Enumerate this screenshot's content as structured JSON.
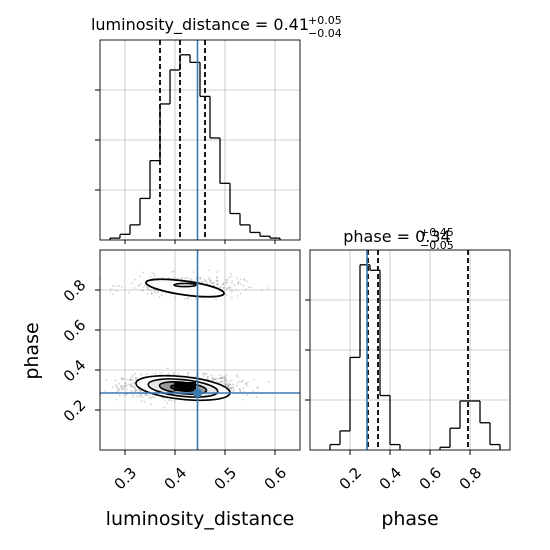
{
  "chart_data": {
    "type": "corner",
    "parameters": [
      {
        "label": "luminosity_distance",
        "title_prefix": "luminosity_distance = ",
        "title_value": "0.41",
        "title_plus": "+0.05",
        "title_minus": "−0.04",
        "range": [
          0.25,
          0.65
        ],
        "ticks": [
          0.3,
          0.4,
          0.5,
          0.6
        ],
        "tick_labels": [
          "0.3",
          "0.4",
          "0.5",
          "0.6"
        ],
        "truth": 0.445,
        "quantiles": [
          0.37,
          0.41,
          0.46
        ],
        "histogram": {
          "bin_edges": [
            0.25,
            0.27,
            0.29,
            0.31,
            0.33,
            0.35,
            0.37,
            0.39,
            0.41,
            0.43,
            0.45,
            0.47,
            0.49,
            0.51,
            0.53,
            0.55,
            0.57,
            0.59,
            0.61,
            0.63,
            0.65
          ],
          "counts": [
            0,
            0.5,
            1.5,
            4,
            11,
            21,
            36,
            45,
            49,
            47,
            38,
            27,
            15,
            7,
            4,
            2,
            1,
            0.5,
            0,
            0
          ]
        }
      },
      {
        "label": "phase",
        "title_prefix": "phase = ",
        "title_value": "0.34",
        "title_plus": "+0.45",
        "title_minus": "−0.05",
        "range": [
          0.0,
          1.0
        ],
        "ticks": [
          0.2,
          0.4,
          0.6,
          0.8
        ],
        "tick_labels": [
          "0.2",
          "0.4",
          "0.6",
          "0.8"
        ],
        "truth": 0.285,
        "quantiles": [
          0.29,
          0.34,
          0.79
        ],
        "histogram": {
          "bin_edges": [
            0,
            0.05,
            0.1,
            0.15,
            0.2,
            0.25,
            0.3,
            0.35,
            0.4,
            0.45,
            0.5,
            0.55,
            0.6,
            0.65,
            0.7,
            0.75,
            0.8,
            0.85,
            0.9,
            0.95,
            1.0
          ],
          "counts": [
            0,
            0,
            1,
            3.5,
            17,
            34,
            33,
            10,
            1,
            0,
            0,
            0,
            0,
            0.5,
            4,
            9,
            9,
            5,
            1,
            0
          ]
        }
      }
    ],
    "joint": {
      "x_param": "luminosity_distance",
      "y_param": "phase",
      "truth": [
        0.445,
        0.285
      ],
      "modes": [
        {
          "center": [
            0.41,
            0.32
          ],
          "spread": [
            0.045,
            0.03
          ],
          "weight": 0.78
        },
        {
          "center": [
            0.42,
            0.82
          ],
          "spread": [
            0.045,
            0.03
          ],
          "weight": 0.22
        }
      ]
    },
    "grid": true,
    "colors": {
      "truth": "#3a78b0",
      "hist": "#000000",
      "quantile": "#000000",
      "grid": "#bfbfbf",
      "scatter": "#7f7f7f"
    }
  }
}
